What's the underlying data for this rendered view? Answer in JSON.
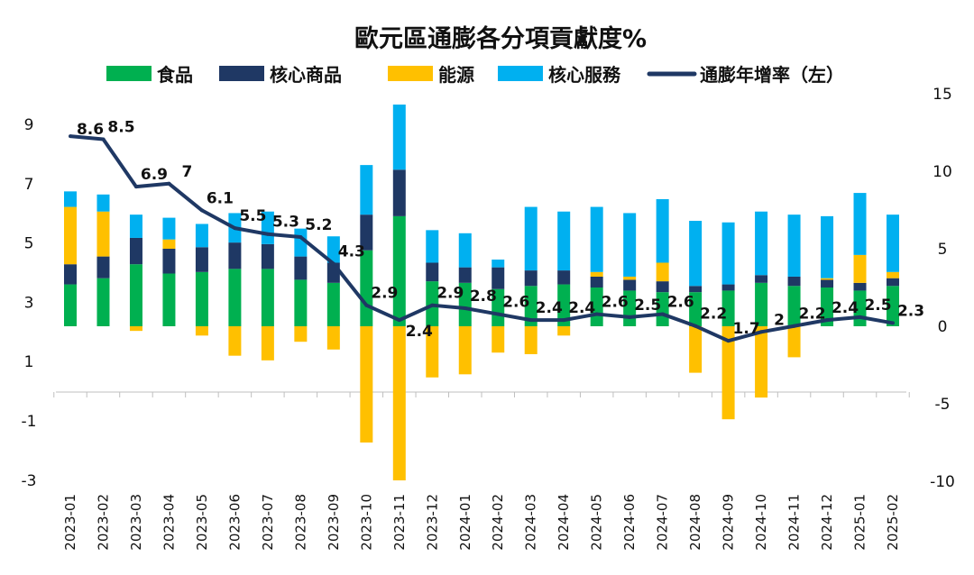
{
  "chart_data": {
    "type": "bar",
    "subtype": "stacked bar with line on secondary axis",
    "title": "歐元區通膨各分項貢獻度%",
    "categories": [
      "2023-01",
      "2023-02",
      "2023-03",
      "2023-04",
      "2023-05",
      "2023-06",
      "2023-07",
      "2023-08",
      "2023-09",
      "2023-10",
      "2023-11",
      "2023-12",
      "2024-01",
      "2024-02",
      "2024-03",
      "2024-04",
      "2024-05",
      "2024-06",
      "2024-07",
      "2024-08",
      "2024-09",
      "2024-10",
      "2024-11",
      "2024-12",
      "2025-01",
      "2025-02"
    ],
    "series": [
      {
        "name": "食品",
        "type": "bar",
        "axis": "right",
        "color": "#00b050",
        "values": [
          2.7,
          3.1,
          4.0,
          3.4,
          3.5,
          3.7,
          3.7,
          3.0,
          2.8,
          4.9,
          7.1,
          2.9,
          2.8,
          2.4,
          2.6,
          2.7,
          2.5,
          2.3,
          2.2,
          2.2,
          2.3,
          2.8,
          2.6,
          2.5,
          2.3,
          2.6
        ]
      },
      {
        "name": "核心商品",
        "type": "bar",
        "axis": "right",
        "color": "#1f3864",
        "values": [
          1.3,
          1.4,
          1.7,
          1.6,
          1.6,
          1.7,
          1.6,
          1.5,
          1.3,
          2.3,
          3.0,
          1.2,
          1.0,
          1.4,
          1.0,
          0.9,
          0.7,
          0.7,
          0.7,
          0.4,
          0.4,
          0.5,
          0.6,
          0.5,
          0.5,
          0.5
        ]
      },
      {
        "name": "能源",
        "type": "bar",
        "axis": "right",
        "color": "#ffc000",
        "values": [
          3.7,
          2.9,
          -0.3,
          0.6,
          -0.6,
          -1.9,
          -2.2,
          -1.0,
          -1.5,
          -7.5,
          -10.0,
          -3.3,
          -3.1,
          -1.7,
          -1.8,
          -0.6,
          0.3,
          0.2,
          1.2,
          -3.0,
          -6.0,
          -4.6,
          -2.0,
          0.1,
          1.8,
          0.4
        ]
      },
      {
        "name": "核心服務",
        "type": "bar",
        "axis": "right",
        "color": "#00b0f0",
        "values": [
          1.0,
          1.1,
          1.5,
          1.4,
          1.5,
          1.9,
          2.1,
          1.8,
          1.7,
          3.2,
          4.2,
          2.1,
          2.2,
          0.5,
          4.1,
          3.8,
          4.2,
          4.1,
          4.1,
          4.2,
          4.0,
          4.1,
          4.0,
          4.0,
          4.0,
          3.7
        ]
      },
      {
        "name": "通膨年增率(左)",
        "type": "line",
        "axis": "left",
        "color": "#1f3864",
        "values": [
          8.6,
          8.5,
          6.9,
          7.0,
          6.1,
          5.5,
          5.3,
          5.2,
          4.3,
          2.9,
          2.4,
          2.9,
          2.8,
          2.6,
          2.4,
          2.4,
          2.6,
          2.5,
          2.6,
          2.2,
          1.7,
          2.0,
          2.2,
          2.4,
          2.5,
          2.3
        ],
        "labels": [
          "8.6",
          "8.5",
          "6.9",
          "7",
          "6.1",
          "5.5",
          "5.3",
          "5.2",
          "4.3",
          "2.9",
          "2.4",
          "2.9",
          "2.8",
          "2.6",
          "2.4",
          "2.4",
          "2.6",
          "2.5",
          "2.6",
          "2.2",
          "1.7",
          "2",
          "2.2",
          "2.4",
          "2.5",
          "2.3"
        ]
      }
    ],
    "legend_labels": [
      "食品",
      "核心商品",
      "能源",
      "核心服務",
      "通膨年增率（左）"
    ],
    "legend_position": "top",
    "y_left": {
      "ylim": [
        -3,
        9
      ],
      "ticks": [
        "9",
        "7",
        "5",
        "3",
        "1",
        "-1",
        "-3"
      ],
      "tick_values": [
        9,
        7,
        5,
        3,
        1,
        -1,
        -3
      ]
    },
    "y_right": {
      "ylim": [
        -10,
        15
      ],
      "ticks": [
        "15",
        "10",
        "5",
        "0",
        "-5",
        "-10"
      ],
      "tick_values": [
        15,
        10,
        5,
        0,
        -5,
        -10
      ],
      "negative_color": "#e00000"
    },
    "grid": false
  }
}
